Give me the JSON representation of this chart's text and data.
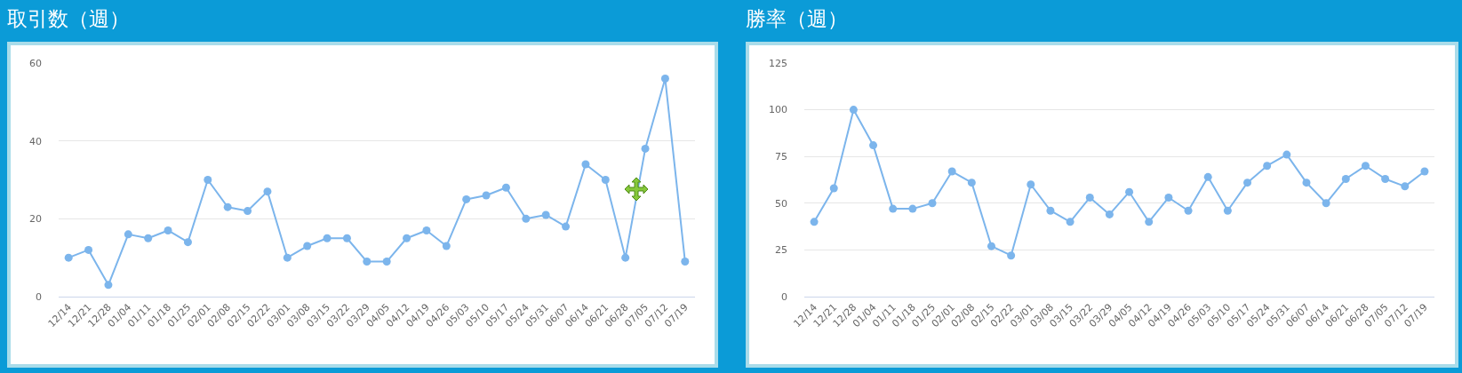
{
  "chart_data": [
    {
      "type": "line",
      "title": "取引数（週）",
      "categories": [
        "12/14",
        "12/21",
        "12/28",
        "01/04",
        "01/11",
        "01/18",
        "01/25",
        "02/01",
        "02/08",
        "02/15",
        "02/22",
        "03/01",
        "03/08",
        "03/15",
        "03/22",
        "03/29",
        "04/05",
        "04/12",
        "04/19",
        "04/26",
        "05/03",
        "05/10",
        "05/17",
        "05/24",
        "05/31",
        "06/07",
        "06/14",
        "06/21",
        "06/28",
        "07/05",
        "07/12",
        "07/19"
      ],
      "series": [
        {
          "color": "#7cb5ec",
          "values": [
            10,
            12,
            3,
            16,
            15,
            17,
            14,
            30,
            23,
            22,
            27,
            10,
            13,
            15,
            15,
            9,
            9,
            15,
            17,
            13,
            25,
            26,
            28,
            20,
            21,
            18,
            34,
            30,
            10,
            38,
            56,
            9
          ]
        }
      ],
      "ylim": [
        0,
        60
      ],
      "yticks": [
        0,
        20,
        40,
        60
      ],
      "grid": "y",
      "marker": "circle",
      "line_style": "solid"
    },
    {
      "type": "line",
      "title": "勝率（週）",
      "categories": [
        "12/14",
        "12/21",
        "12/28",
        "01/04",
        "01/11",
        "01/18",
        "01/25",
        "02/01",
        "02/08",
        "02/15",
        "02/22",
        "03/01",
        "03/08",
        "03/15",
        "03/22",
        "03/29",
        "04/05",
        "04/12",
        "04/19",
        "04/26",
        "05/03",
        "05/10",
        "05/17",
        "05/24",
        "05/31",
        "06/07",
        "06/14",
        "06/21",
        "06/28",
        "07/05",
        "07/12",
        "07/19"
      ],
      "series": [
        {
          "color": "#7cb5ec",
          "values": [
            40,
            58,
            100,
            81,
            47,
            47,
            50,
            67,
            61,
            27,
            22,
            60,
            46,
            40,
            53,
            44,
            56,
            40,
            53,
            46,
            64,
            46,
            61,
            70,
            76,
            61,
            50,
            63,
            70,
            63,
            59,
            67
          ]
        }
      ],
      "ylim": [
        0,
        125
      ],
      "yticks": [
        0,
        25,
        50,
        75,
        100,
        125
      ],
      "grid": "y",
      "marker": "circle",
      "line_style": "solid"
    }
  ]
}
